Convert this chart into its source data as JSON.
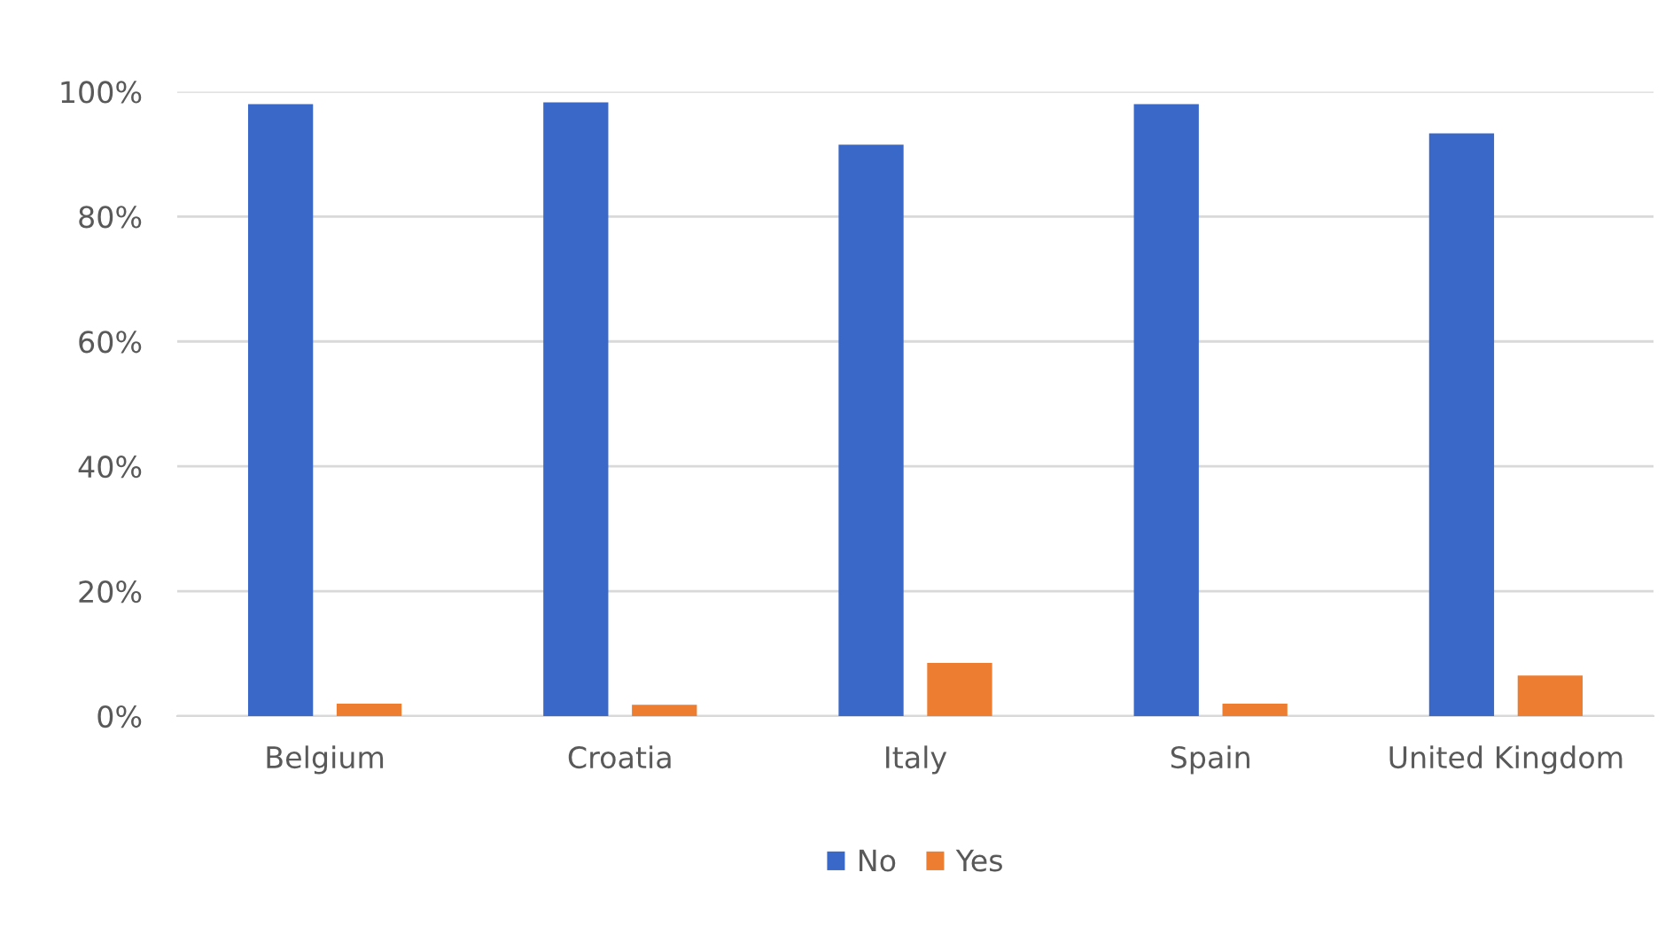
{
  "chart_data": {
    "type": "bar",
    "categories": [
      "Belgium",
      "Croatia",
      "Italy",
      "Spain",
      "United Kingdom"
    ],
    "series": [
      {
        "name": "No",
        "color": "#3a68c8",
        "values": [
          98,
          98.3,
          91.5,
          98,
          93.3
        ]
      },
      {
        "name": "Yes",
        "color": "#ed7d31",
        "values": [
          2,
          1.8,
          8.5,
          2,
          6.5
        ]
      }
    ],
    "ylim": [
      0,
      100
    ],
    "yticks": [
      {
        "value": 0,
        "label": "0%"
      },
      {
        "value": 20,
        "label": "20%"
      },
      {
        "value": 40,
        "label": "40%"
      },
      {
        "value": 60,
        "label": "60%"
      },
      {
        "value": 80,
        "label": "80%"
      },
      {
        "value": 100,
        "label": "100%"
      }
    ],
    "grid": "y",
    "legend": "bottom"
  }
}
